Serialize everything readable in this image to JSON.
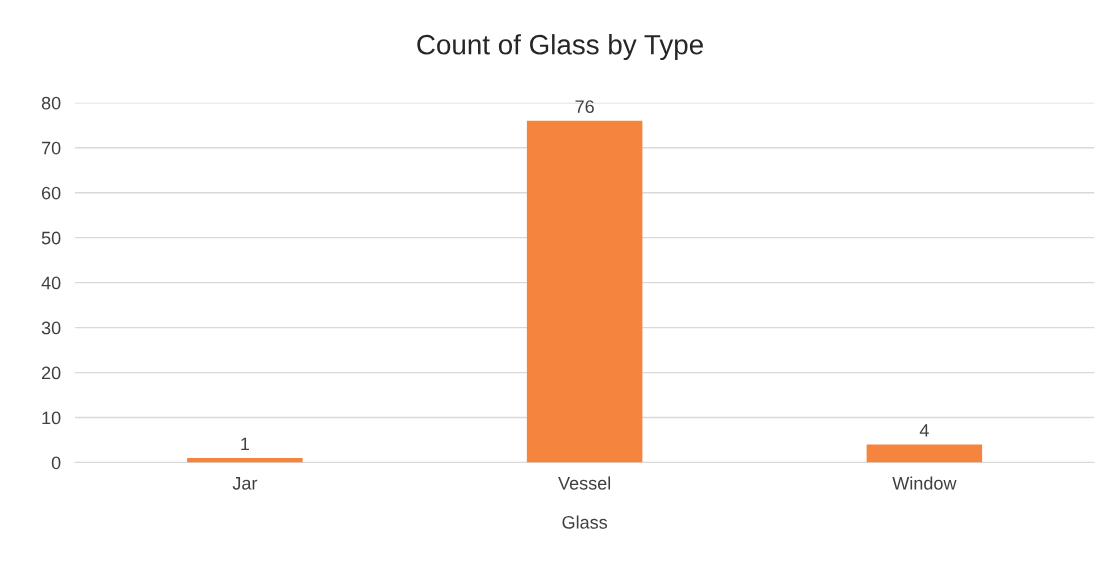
{
  "chart_data": {
    "type": "bar",
    "title": "Count of Glass by Type",
    "xlabel": "Glass",
    "categories": [
      "Jar",
      "Vessel",
      "Window"
    ],
    "values": [
      1,
      76,
      4
    ],
    "color": "#f5843f",
    "ylim": [
      0,
      80
    ],
    "yticks": [
      0,
      10,
      20,
      30,
      40,
      50,
      60,
      70,
      80
    ],
    "grid": "y",
    "data_labels": true
  }
}
